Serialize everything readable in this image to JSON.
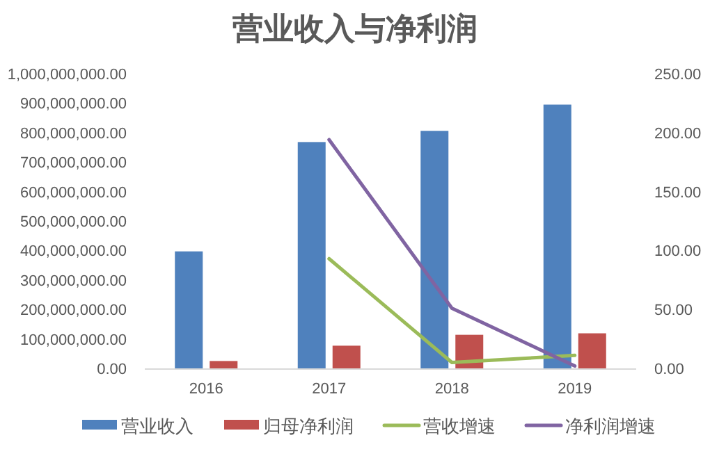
{
  "chart_data": {
    "type": "bar",
    "title": "营业收入与净利润",
    "categories": [
      "2016",
      "2017",
      "2018",
      "2019"
    ],
    "series": [
      {
        "name": "营业收入",
        "color": "#4f81bd",
        "values": [
          397000000,
          768000000,
          806000000,
          895000000
        ]
      },
      {
        "name": "归母净利润",
        "color": "#c0504d",
        "values": [
          25000000,
          77000000,
          114000000,
          119000000
        ]
      },
      {
        "name": "营收增速",
        "type": "line",
        "axis": "y2",
        "color": "#9bbb59",
        "values": [
          null,
          93,
          5,
          11
        ]
      },
      {
        "name": "净利润增速",
        "type": "line",
        "axis": "y2",
        "color": "#8064a2",
        "values": [
          null,
          194,
          51,
          2
        ]
      }
    ],
    "ylim": [
      0,
      1000000000
    ],
    "yticks": [
      {
        "value": 0,
        "label": "0.00"
      },
      {
        "value": 100000000,
        "label": "100,000,000.00"
      },
      {
        "value": 200000000,
        "label": "200,000,000.00"
      },
      {
        "value": 300000000,
        "label": "300,000,000.00"
      },
      {
        "value": 400000000,
        "label": "400,000,000.00"
      },
      {
        "value": 500000000,
        "label": "500,000,000.00"
      },
      {
        "value": 600000000,
        "label": "600,000,000.00"
      },
      {
        "value": 700000000,
        "label": "700,000,000.00"
      },
      {
        "value": 800000000,
        "label": "800,000,000.00"
      },
      {
        "value": 900000000,
        "label": "900,000,000.00"
      },
      {
        "value": 1000000000,
        "label": "1,000,000,000.00"
      }
    ],
    "y2lim": [
      0,
      250
    ],
    "y2ticks": [
      {
        "value": 0,
        "label": "0.00"
      },
      {
        "value": 50,
        "label": "50.00"
      },
      {
        "value": 100,
        "label": "100.00"
      },
      {
        "value": 150,
        "label": "150.00"
      },
      {
        "value": 200,
        "label": "200.00"
      },
      {
        "value": 250,
        "label": "250.00"
      }
    ],
    "grid": false,
    "legend": "bottom"
  }
}
